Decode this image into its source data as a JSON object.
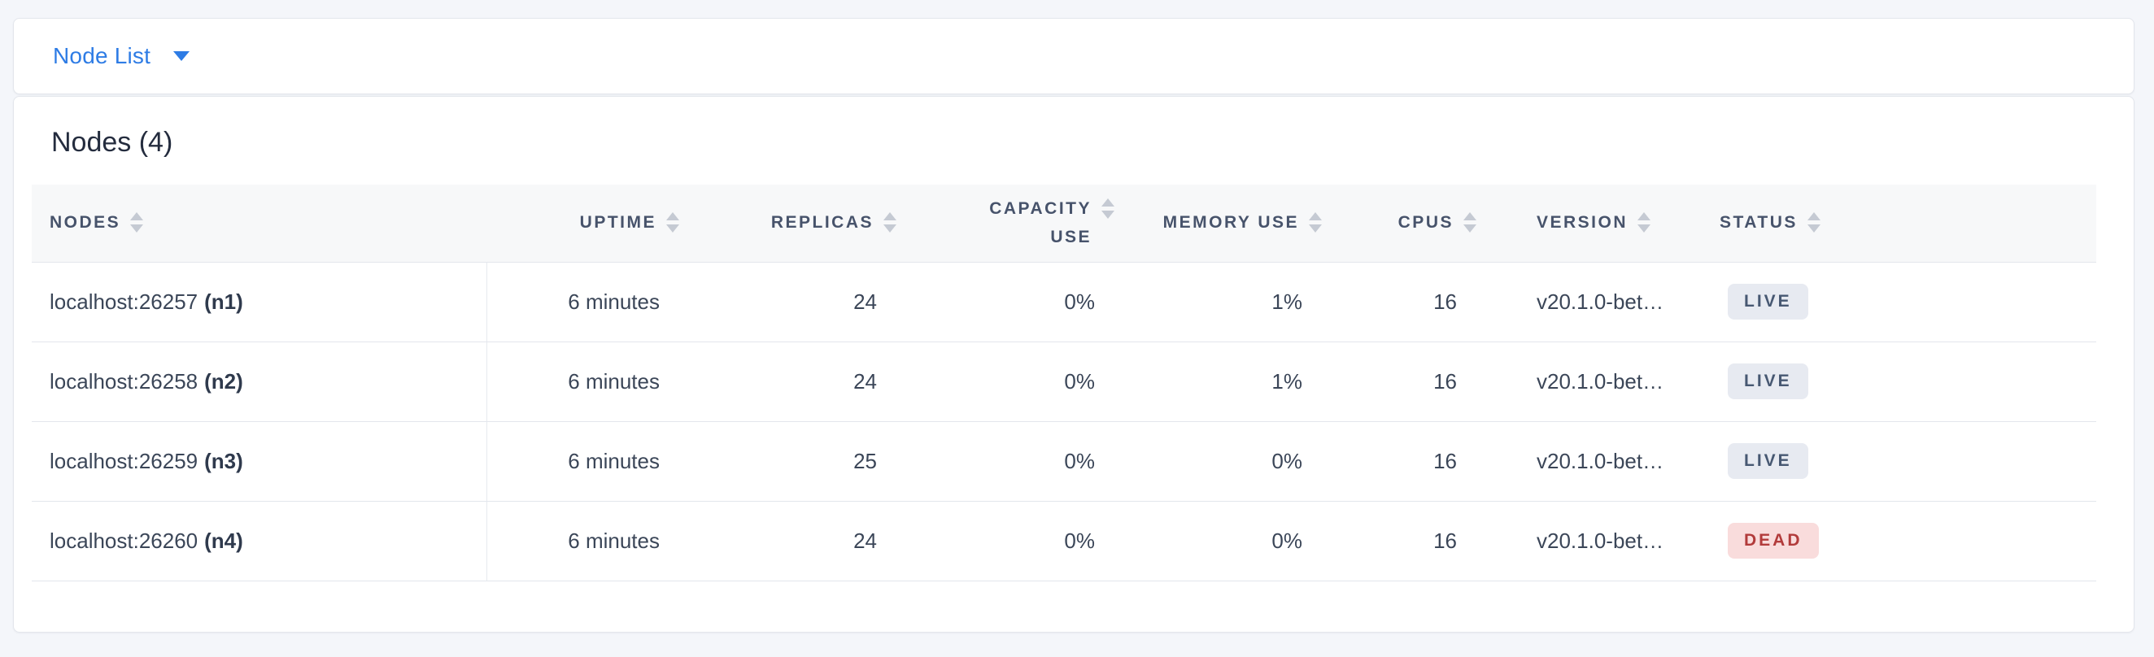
{
  "page": {
    "background_color": "#f4f6fa"
  },
  "view_selector": {
    "label": "Node List",
    "icon": "caret-down-icon",
    "accent_color": "#2e7ce5"
  },
  "main": {
    "title": "Nodes (4)"
  },
  "table": {
    "columns": [
      {
        "key": "nodes",
        "label": "NODES",
        "align": "left",
        "sortable": true
      },
      {
        "key": "uptime",
        "label": "UPTIME",
        "align": "right",
        "sortable": true
      },
      {
        "key": "replicas",
        "label": "REPLICAS",
        "align": "right",
        "sortable": true
      },
      {
        "key": "capacity_use",
        "label": "CAPACITY USE",
        "align": "right",
        "sortable": true
      },
      {
        "key": "memory_use",
        "label": "MEMORY USE",
        "align": "right",
        "sortable": true
      },
      {
        "key": "cpus",
        "label": "CPUS",
        "align": "right",
        "sortable": true
      },
      {
        "key": "version",
        "label": "VERSION",
        "align": "left",
        "sortable": true
      },
      {
        "key": "status",
        "label": "STATUS",
        "align": "left",
        "sortable": true
      }
    ],
    "rows": [
      {
        "address": "localhost:26257",
        "node_id": "(n1)",
        "uptime": "6 minutes",
        "replicas": "24",
        "capacity_use": "0%",
        "memory_use": "1%",
        "cpus": "16",
        "version": "v20.1.0-bet…",
        "status": "LIVE"
      },
      {
        "address": "localhost:26258",
        "node_id": "(n2)",
        "uptime": "6 minutes",
        "replicas": "24",
        "capacity_use": "0%",
        "memory_use": "1%",
        "cpus": "16",
        "version": "v20.1.0-bet…",
        "status": "LIVE"
      },
      {
        "address": "localhost:26259",
        "node_id": "(n3)",
        "uptime": "6 minutes",
        "replicas": "25",
        "capacity_use": "0%",
        "memory_use": "0%",
        "cpus": "16",
        "version": "v20.1.0-bet…",
        "status": "LIVE"
      },
      {
        "address": "localhost:26260",
        "node_id": "(n4)",
        "uptime": "6 minutes",
        "replicas": "24",
        "capacity_use": "0%",
        "memory_use": "0%",
        "cpus": "16",
        "version": "v20.1.0-bet…",
        "status": "DEAD"
      }
    ]
  },
  "status_colors": {
    "live": {
      "background": "#e7eaf1",
      "text": "#475872"
    },
    "dead": {
      "background": "#f9dcdc",
      "text": "#b23b3b"
    }
  },
  "sort_icon_color": "#c5cad3"
}
